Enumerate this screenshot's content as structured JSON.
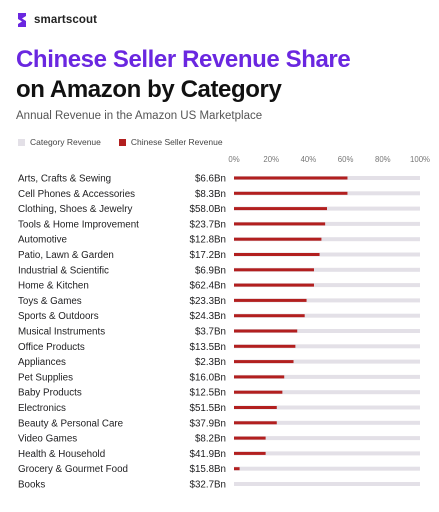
{
  "brand": {
    "name": "smartscout"
  },
  "colors": {
    "title_accent": "#6a27e0",
    "category_bar": "#e3e0e7",
    "seller_bar": "#b21f1f"
  },
  "chart_data": {
    "type": "bar",
    "orientation": "horizontal",
    "title_line1": "Chinese Seller Revenue Share",
    "title_line2": "on Amazon by Category",
    "subtitle": "Annual Revenue in the Amazon US Marketplace",
    "legend": [
      "Category Revenue",
      "Chinese Seller Revenue"
    ],
    "legend_placement": "top-left",
    "x_ticks": [
      "0%",
      "20%",
      "40%",
      "60%",
      "80%",
      "100%"
    ],
    "xlim": [
      0,
      100
    ],
    "categories": [
      "Arts, Crafts & Sewing",
      "Cell Phones & Accessories",
      "Clothing, Shoes & Jewelry",
      "Tools & Home Improvement",
      "Automotive",
      "Patio, Lawn & Garden",
      "Industrial & Scientific",
      "Home & Kitchen",
      "Toys & Games",
      "Sports & Outdoors",
      "Musical Instruments",
      "Office Products",
      "Appliances",
      "Pet Supplies",
      "Baby Products",
      "Electronics",
      "Beauty & Personal Care",
      "Video Games",
      "Health & Household",
      "Grocery & Gourmet Food",
      "Books"
    ],
    "category_revenue_labels": [
      "$6.6Bn",
      "$8.3Bn",
      "$58.0Bn",
      "$23.7Bn",
      "$12.8Bn",
      "$17.2Bn",
      "$6.9Bn",
      "$62.4Bn",
      "$23.3Bn",
      "$24.3Bn",
      "$3.7Bn",
      "$13.5Bn",
      "$2.3Bn",
      "$16.0Bn",
      "$12.5Bn",
      "$51.5Bn",
      "$37.9Bn",
      "$8.2Bn",
      "$41.9Bn",
      "$15.8Bn",
      "$32.7Bn"
    ],
    "series": [
      {
        "name": "Category Revenue",
        "values": [
          100,
          100,
          100,
          100,
          100,
          100,
          100,
          100,
          100,
          100,
          100,
          100,
          100,
          100,
          100,
          100,
          100,
          100,
          100,
          100,
          100
        ]
      },
      {
        "name": "Chinese Seller Revenue",
        "values": [
          61,
          61,
          50,
          49,
          47,
          46,
          43,
          43,
          39,
          38,
          34,
          33,
          32,
          27,
          26,
          23,
          23,
          17,
          17,
          3,
          0
        ]
      }
    ]
  }
}
